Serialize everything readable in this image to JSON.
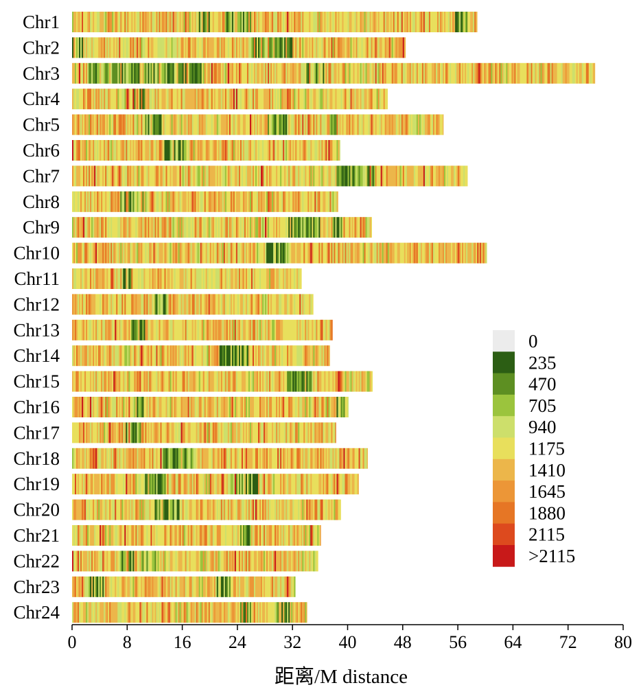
{
  "chart_data": {
    "type": "heatmap",
    "title": "",
    "xlabel": "距离/M distance",
    "ylabel": "",
    "xlim": [
      0,
      80
    ],
    "x_ticks": [
      "0",
      "8",
      "16",
      "24",
      "32",
      "40",
      "48",
      "56",
      "64",
      "72",
      "80"
    ],
    "x_tick_values": [
      0,
      8,
      16,
      24,
      32,
      40,
      48,
      56,
      64,
      72,
      80
    ],
    "bin_size_mb": 0.2,
    "grid": false,
    "legend_position": "right",
    "chromosomes": [
      {
        "name": "Chr1",
        "length_mb": 58.8
      },
      {
        "name": "Chr2",
        "length_mb": 48.4
      },
      {
        "name": "Chr3",
        "length_mb": 75.9
      },
      {
        "name": "Chr4",
        "length_mb": 45.8
      },
      {
        "name": "Chr5",
        "length_mb": 53.9
      },
      {
        "name": "Chr6",
        "length_mb": 38.9
      },
      {
        "name": "Chr7",
        "length_mb": 57.4
      },
      {
        "name": "Chr8",
        "length_mb": 38.6
      },
      {
        "name": "Chr9",
        "length_mb": 43.5
      },
      {
        "name": "Chr10",
        "length_mb": 60.2
      },
      {
        "name": "Chr11",
        "length_mb": 33.3
      },
      {
        "name": "Chr12",
        "length_mb": 35.0
      },
      {
        "name": "Chr13",
        "length_mb": 37.8
      },
      {
        "name": "Chr14",
        "length_mb": 37.4
      },
      {
        "name": "Chr15",
        "length_mb": 43.6
      },
      {
        "name": "Chr16",
        "length_mb": 40.1
      },
      {
        "name": "Chr17",
        "length_mb": 38.3
      },
      {
        "name": "Chr18",
        "length_mb": 42.9
      },
      {
        "name": "Chr19",
        "length_mb": 41.6
      },
      {
        "name": "Chr20",
        "length_mb": 39.0
      },
      {
        "name": "Chr21",
        "length_mb": 36.1
      },
      {
        "name": "Chr22",
        "length_mb": 35.7
      },
      {
        "name": "Chr23",
        "length_mb": 32.4
      },
      {
        "name": "Chr24",
        "length_mb": 34.1
      }
    ],
    "legend": [
      {
        "label": "0",
        "color": "#ececec"
      },
      {
        "label": "235",
        "color": "#2c5e14"
      },
      {
        "label": "470",
        "color": "#5d8f22"
      },
      {
        "label": "705",
        "color": "#9bc43d"
      },
      {
        "label": "940",
        "color": "#cddf6b"
      },
      {
        "label": "1175",
        "color": "#e8df5c"
      },
      {
        "label": "1410",
        "color": "#ecb64a"
      },
      {
        "label": "1645",
        "color": "#ec9637"
      },
      {
        "label": "1880",
        "color": "#e67625"
      },
      {
        "label": "2115",
        "color": "#dd4a1e"
      },
      {
        "label": ">2115",
        "color": "#c81919"
      }
    ],
    "green_hotspots": {
      "Chr1": [
        [
          18,
          20
        ],
        [
          22,
          26
        ],
        [
          55.5,
          57.5
        ]
      ],
      "Chr2": [
        [
          0,
          1.5
        ],
        [
          26,
          32
        ]
      ],
      "Chr3": [
        [
          2,
          19
        ],
        [
          34,
          36.5
        ]
      ],
      "Chr4": [
        [
          9,
          10.5
        ]
      ],
      "Chr5": [
        [
          10.5,
          13
        ],
        [
          28.5,
          31.5
        ],
        [
          37.5,
          38.5
        ]
      ],
      "Chr6": [
        [
          13.5,
          16.5
        ]
      ],
      "Chr7": [
        [
          38,
          44
        ]
      ],
      "Chr8": [
        [
          7,
          11
        ]
      ],
      "Chr9": [
        [
          31,
          36
        ],
        [
          38,
          39.5
        ]
      ],
      "Chr10": [
        [
          28,
          31.5
        ]
      ],
      "Chr11": [
        [
          7.5,
          8.5
        ]
      ],
      "Chr12": [
        [
          12,
          14
        ]
      ],
      "Chr13": [
        [
          8.5,
          10.5
        ]
      ],
      "Chr14": [
        [
          21.5,
          25.5
        ]
      ],
      "Chr15": [
        [
          31,
          35
        ]
      ],
      "Chr16": [
        [
          9,
          10.5
        ],
        [
          38.5,
          40
        ]
      ],
      "Chr17": [
        [
          7.5,
          10
        ]
      ],
      "Chr18": [
        [
          13,
          18
        ]
      ],
      "Chr19": [
        [
          10.5,
          13.5
        ],
        [
          23,
          27
        ]
      ],
      "Chr20": [
        [
          12,
          16
        ]
      ],
      "Chr21": [
        [
          24.5,
          26
        ]
      ],
      "Chr22": [
        [
          7,
          9
        ],
        [
          10,
          12.5
        ]
      ],
      "Chr23": [
        [
          21,
          23
        ],
        [
          2,
          4.5
        ]
      ],
      "Chr24": [
        [
          24.5,
          26
        ],
        [
          29.5,
          32
        ]
      ]
    }
  }
}
